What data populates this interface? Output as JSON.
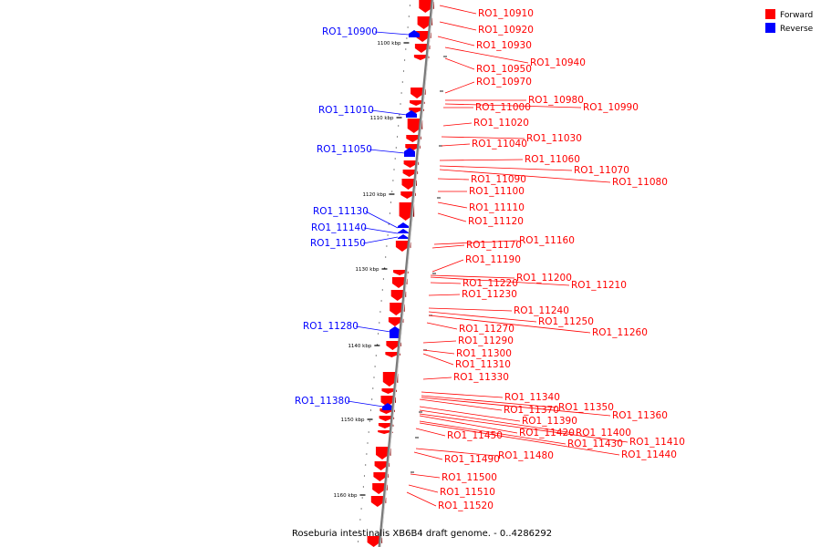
{
  "caption": "Roseburia intestinalis XB6B4 draft genome. - 0..4286292",
  "legend": [
    {
      "label": "Forward",
      "color": "#ff0000"
    },
    {
      "label": "Reverse",
      "color": "#0000ff"
    }
  ],
  "colors": {
    "forward": "#ff0000",
    "reverse": "#0000ff",
    "backbone": "#8c8c8c"
  },
  "ticks": [
    "1100 kbp",
    "1110 kbp",
    "1120 kbp",
    "1130 kbp",
    "1140 kbp",
    "1150 kbp",
    "1160 kbp"
  ],
  "forward_genes": [
    "RO1_10910",
    "RO1_10920",
    "RO1_10930",
    "RO1_10940",
    "RO1_10950",
    "RO1_10970",
    "RO1_10980",
    "RO1_10990",
    "RO1_11000",
    "RO1_11020",
    "RO1_11030",
    "RO1_11040",
    "RO1_11060",
    "RO1_11070",
    "RO1_11080",
    "RO1_11090",
    "RO1_11100",
    "RO1_11110",
    "RO1_11120",
    "RO1_11160",
    "RO1_11170",
    "RO1_11190",
    "RO1_11200",
    "RO1_11210",
    "RO1_11220",
    "RO1_11230",
    "RO1_11240",
    "RO1_11250",
    "RO1_11260",
    "RO1_11270",
    "RO1_11290",
    "RO1_11300",
    "RO1_11310",
    "RO1_11330",
    "RO1_11340",
    "RO1_11350",
    "RO1_11360",
    "RO1_11370",
    "RO1_11390",
    "RO1_11400",
    "RO1_11410",
    "RO1_11420",
    "RO1_11430",
    "RO1_11440",
    "RO1_11450",
    "RO1_11480",
    "RO1_11490",
    "RO1_11500",
    "RO1_11510",
    "RO1_11520"
  ],
  "reverse_genes": [
    "RO1_10900",
    "RO1_11010",
    "RO1_11050",
    "RO1_11130",
    "RO1_11140",
    "RO1_11150",
    "RO1_11280",
    "RO1_11380"
  ]
}
